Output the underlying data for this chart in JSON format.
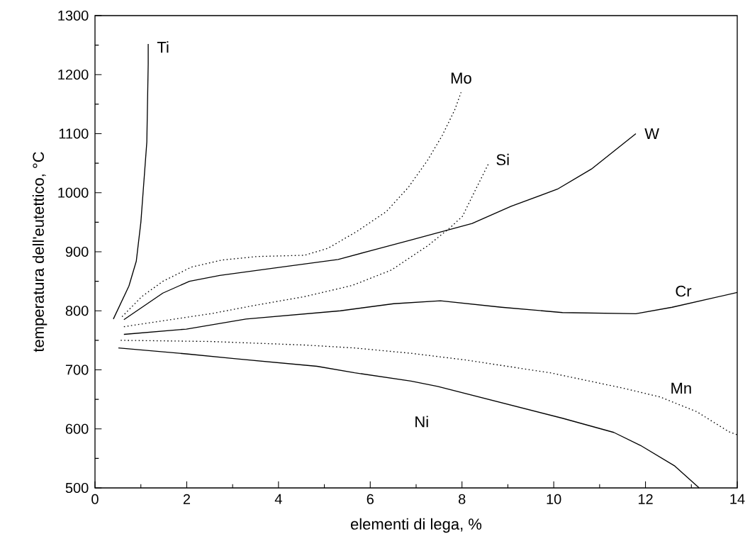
{
  "chart_data": {
    "type": "line",
    "xlabel": "elementi di lega, %",
    "ylabel": "temperatura dell'eutettico, °C",
    "xlim": [
      0,
      14
    ],
    "ylim": [
      500,
      1300
    ],
    "xticks": [
      0,
      2,
      4,
      6,
      8,
      10,
      12,
      14
    ],
    "yticks": [
      500,
      600,
      700,
      800,
      900,
      1000,
      1100,
      1200,
      1300
    ],
    "grid": false,
    "marker": "none",
    "series": [
      {
        "name": "Ti",
        "color": "#000000",
        "line_style": "solid",
        "x": [
          0.4,
          0.74,
          0.9,
          1.0,
          1.05,
          1.13,
          1.16,
          1.16
        ],
        "values": [
          786,
          842,
          884,
          950,
          1002,
          1086,
          1218,
          1252
        ]
      },
      {
        "name": "Mo",
        "color": "#000000",
        "line_style": "dotted",
        "x": [
          0.59,
          1.02,
          1.48,
          2.1,
          2.77,
          3.54,
          4.57,
          5.08,
          5.7,
          6.35,
          6.83,
          7.25,
          7.57,
          7.84,
          7.98
        ],
        "values": [
          790,
          824,
          850,
          874,
          886,
          892,
          894,
          906,
          934,
          968,
          1009,
          1055,
          1097,
          1140,
          1170
        ]
      },
      {
        "name": "Si",
        "color": "#000000",
        "line_style": "dotted",
        "x": [
          0.63,
          1.48,
          2.52,
          3.54,
          4.57,
          5.61,
          6.46,
          7.25,
          7.73,
          8.01,
          8.32,
          8.59
        ],
        "values": [
          773,
          783,
          795,
          810,
          824,
          843,
          869,
          910,
          940,
          960,
          1009,
          1051
        ]
      },
      {
        "name": "W",
        "color": "#000000",
        "line_style": "solid",
        "x": [
          0.63,
          1.48,
          2.06,
          2.72,
          4.06,
          5.3,
          6.12,
          6.89,
          8.22,
          9.07,
          10.08,
          10.82,
          11.79
        ],
        "values": [
          785,
          830,
          850,
          860,
          874,
          887,
          904,
          920,
          948,
          977,
          1006,
          1040,
          1100
        ]
      },
      {
        "name": "Cr",
        "color": "#000000",
        "line_style": "solid",
        "x": [
          0.63,
          1.99,
          3.29,
          5.35,
          6.51,
          7.53,
          8.86,
          10.19,
          11.79,
          12.58,
          14.0
        ],
        "values": [
          760,
          769,
          786,
          800,
          812,
          817,
          806,
          797,
          795,
          806,
          831
        ]
      },
      {
        "name": "Mn",
        "color": "#000000",
        "line_style": "dotted",
        "x": [
          0.56,
          2.52,
          4.57,
          5.66,
          6.89,
          8.05,
          9.92,
          11.51,
          12.32,
          13.12,
          13.82,
          14.0
        ],
        "values": [
          750,
          748,
          742,
          737,
          728,
          717,
          695,
          669,
          654,
          629,
          595,
          590
        ]
      },
      {
        "name": "Ni",
        "color": "#000000",
        "line_style": "solid",
        "x": [
          0.51,
          1.99,
          3.03,
          4.84,
          5.66,
          6.89,
          7.47,
          10.19,
          11.31,
          11.89,
          12.64,
          13.17
        ],
        "values": [
          737,
          727,
          719,
          706,
          695,
          681,
          672,
          618,
          594,
          572,
          537,
          500
        ]
      }
    ]
  }
}
